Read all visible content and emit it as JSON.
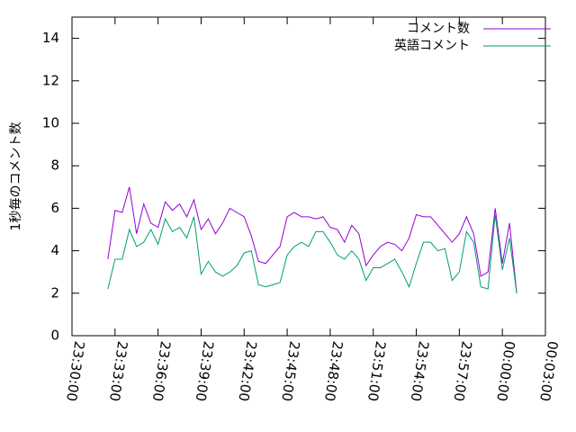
{
  "chart_data": {
    "type": "line",
    "ylabel": "1秒毎のコメント数",
    "x": [
      150,
      180,
      210,
      240,
      270,
      300,
      330,
      360,
      390,
      420,
      450,
      480,
      510,
      540,
      570,
      600,
      630,
      660,
      690,
      720,
      750,
      780,
      810,
      840,
      870,
      900,
      930,
      960,
      990,
      1020,
      1050,
      1080,
      1110,
      1140,
      1170,
      1200,
      1230,
      1260,
      1290,
      1320,
      1350,
      1380,
      1410,
      1440,
      1470,
      1500,
      1530,
      1560,
      1590,
      1620,
      1650,
      1680,
      1710,
      1740,
      1770,
      1800,
      1830,
      1860
    ],
    "series": [
      {
        "name": "コメント数",
        "color": "#9400d3",
        "values": [
          3.6,
          5.9,
          5.8,
          7.0,
          4.8,
          6.2,
          5.3,
          5.1,
          6.3,
          5.9,
          6.2,
          5.6,
          6.4,
          5.0,
          5.5,
          4.8,
          5.3,
          6.0,
          5.8,
          5.6,
          4.7,
          3.5,
          3.4,
          3.8,
          4.2,
          5.6,
          5.8,
          5.6,
          5.6,
          5.5,
          5.6,
          5.1,
          5.0,
          4.4,
          5.2,
          4.8,
          3.3,
          3.8,
          4.2,
          4.4,
          4.3,
          4.0,
          4.6,
          5.7,
          5.6,
          5.6,
          5.2,
          4.8,
          4.4,
          4.8,
          5.6,
          4.8,
          2.8,
          3.0,
          6.0,
          3.4,
          5.3,
          2.0
        ]
      },
      {
        "name": "英語コメント",
        "color": "#009e73",
        "values": [
          2.2,
          3.6,
          3.6,
          5.0,
          4.2,
          4.4,
          5.0,
          4.3,
          5.5,
          4.9,
          5.1,
          4.6,
          5.6,
          2.9,
          3.5,
          3.0,
          2.8,
          3.0,
          3.3,
          3.9,
          4.0,
          2.4,
          2.3,
          2.4,
          2.5,
          3.8,
          4.2,
          4.4,
          4.2,
          4.9,
          4.9,
          4.4,
          3.8,
          3.6,
          4.0,
          3.6,
          2.6,
          3.2,
          3.2,
          3.4,
          3.6,
          3.0,
          2.3,
          3.4,
          4.4,
          4.4,
          4.0,
          4.1,
          2.6,
          3.0,
          4.9,
          4.4,
          2.3,
          2.2,
          5.7,
          3.1,
          4.6,
          2.0
        ]
      }
    ],
    "xlim": [
      0,
      1980
    ],
    "xticks": [
      {
        "value": 0,
        "label": "23:30:00"
      },
      {
        "value": 180,
        "label": "23:33:00"
      },
      {
        "value": 360,
        "label": "23:36:00"
      },
      {
        "value": 540,
        "label": "23:39:00"
      },
      {
        "value": 720,
        "label": "23:42:00"
      },
      {
        "value": 900,
        "label": "23:45:00"
      },
      {
        "value": 1080,
        "label": "23:48:00"
      },
      {
        "value": 1260,
        "label": "23:51:00"
      },
      {
        "value": 1440,
        "label": "23:54:00"
      },
      {
        "value": 1620,
        "label": "23:57:00"
      },
      {
        "value": 1800,
        "label": "00:00:00"
      },
      {
        "value": 1980,
        "label": "00:03:00"
      }
    ],
    "ylim": [
      0,
      15
    ],
    "yticks": [
      0,
      2,
      4,
      6,
      8,
      10,
      12,
      14
    ],
    "legend": "upper right"
  }
}
